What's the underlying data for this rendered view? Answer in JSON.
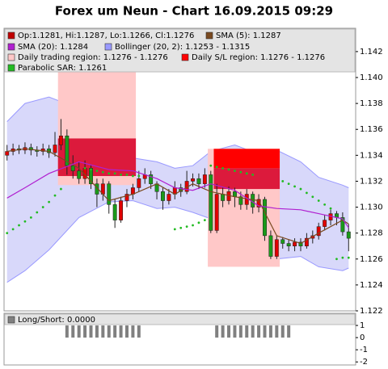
{
  "chart_data": [
    {
      "type": "candlestick",
      "title": "Forex um Neun - Chart 16.09.2015 09:29",
      "candle_label": "Op:1.1281, Hi:1.1287, Lo:1.1266, Cl:1.1276",
      "candle_color": "#c00000",
      "up_color": "#e00000",
      "down_color": "#1a9a1a",
      "open": [
        1.134,
        1.1343,
        1.1345,
        1.1344,
        1.1346,
        1.1344,
        1.1343,
        1.1345,
        1.1342,
        1.1348,
        1.1355,
        1.1332,
        1.1328,
        1.1322,
        1.133,
        1.1318,
        1.131,
        1.1318,
        1.1302,
        1.129,
        1.1305,
        1.131,
        1.1315,
        1.1322,
        1.1325,
        1.1318,
        1.1312,
        1.1305,
        1.131,
        1.1315,
        1.1312,
        1.132,
        1.1322,
        1.1318,
        1.1325,
        1.1282,
        1.131,
        1.1305,
        1.1312,
        1.1308,
        1.1302,
        1.131,
        1.13,
        1.1306,
        1.1278,
        1.1262,
        1.1275,
        1.1272,
        1.127,
        1.1273,
        1.127,
        1.1276,
        1.1278,
        1.1285,
        1.129,
        1.1295,
        1.1292,
        1.1281
      ],
      "high": [
        1.1348,
        1.1349,
        1.1348,
        1.135,
        1.1349,
        1.1347,
        1.1349,
        1.1348,
        1.1358,
        1.1368,
        1.136,
        1.134,
        1.1335,
        1.1336,
        1.1333,
        1.1322,
        1.1322,
        1.132,
        1.1306,
        1.1308,
        1.1314,
        1.1318,
        1.1328,
        1.133,
        1.1328,
        1.132,
        1.1315,
        1.1314,
        1.132,
        1.1318,
        1.1328,
        1.1326,
        1.1326,
        1.133,
        1.1328,
        1.1318,
        1.1315,
        1.1316,
        1.1315,
        1.1312,
        1.1314,
        1.1312,
        1.131,
        1.1308,
        1.1282,
        1.1278,
        1.1277,
        1.1275,
        1.1276,
        1.1276,
        1.128,
        1.1282,
        1.1288,
        1.1294,
        1.1298,
        1.1297,
        1.1296,
        1.1287
      ],
      "low": [
        1.1336,
        1.134,
        1.1341,
        1.1341,
        1.134,
        1.1339,
        1.134,
        1.1338,
        1.1339,
        1.1344,
        1.1325,
        1.1322,
        1.1318,
        1.1318,
        1.1314,
        1.13,
        1.1305,
        1.1295,
        1.1284,
        1.1288,
        1.13,
        1.1306,
        1.1312,
        1.1318,
        1.1314,
        1.1306,
        1.1298,
        1.1302,
        1.1306,
        1.1308,
        1.131,
        1.1316,
        1.1314,
        1.1315,
        1.128,
        1.128,
        1.13,
        1.1302,
        1.13,
        1.1298,
        1.1298,
        1.1295,
        1.1296,
        1.1274,
        1.126,
        1.126,
        1.1268,
        1.1266,
        1.1266,
        1.1266,
        1.1268,
        1.1272,
        1.1275,
        1.1282,
        1.1286,
        1.1286,
        1.1278,
        1.1266
      ],
      "close": [
        1.1343,
        1.1345,
        1.1344,
        1.1346,
        1.1344,
        1.1343,
        1.1345,
        1.1342,
        1.1348,
        1.1355,
        1.1332,
        1.1328,
        1.1322,
        1.133,
        1.1318,
        1.131,
        1.1318,
        1.1302,
        1.129,
        1.1305,
        1.131,
        1.1315,
        1.1322,
        1.1325,
        1.1318,
        1.1312,
        1.1305,
        1.131,
        1.1315,
        1.1312,
        1.132,
        1.1322,
        1.1318,
        1.1325,
        1.1282,
        1.131,
        1.1305,
        1.1312,
        1.1308,
        1.1302,
        1.131,
        1.13,
        1.1306,
        1.1278,
        1.1262,
        1.1275,
        1.1272,
        1.127,
        1.1273,
        1.127,
        1.1276,
        1.1278,
        1.1285,
        1.129,
        1.1295,
        1.1292,
        1.1281,
        1.1276
      ],
      "bollinger": {
        "label": "Bollinger (20, 2): 1.1253 - 1.1315",
        "color": "#9999ff",
        "fill": "#d8d8fa",
        "x": [
          0,
          3,
          7,
          12,
          17,
          21,
          25,
          28,
          31,
          34,
          38,
          42,
          45,
          49,
          52,
          56,
          57
        ],
        "upper": [
          1.1366,
          1.138,
          1.1385,
          1.1376,
          1.1348,
          1.1338,
          1.1335,
          1.133,
          1.1332,
          1.1343,
          1.1348,
          1.1341,
          1.1344,
          1.1335,
          1.1323,
          1.1317,
          1.1315
        ],
        "lower": [
          1.1242,
          1.1251,
          1.1267,
          1.1292,
          1.1304,
          1.1305,
          1.1299,
          1.13,
          1.1296,
          1.1291,
          1.1279,
          1.1259,
          1.126,
          1.1262,
          1.1254,
          1.1251,
          1.1253
        ]
      },
      "lines": [
        {
          "label": "SMA (5): 1.1287",
          "color": "#7a4a20",
          "x": [
            0,
            3,
            7,
            12,
            17,
            21,
            25,
            28,
            31,
            34,
            38,
            42,
            45,
            49,
            52,
            56,
            57
          ],
          "values": [
            1.1343,
            1.1345,
            1.1343,
            1.133,
            1.1305,
            1.131,
            1.1318,
            1.131,
            1.1318,
            1.1312,
            1.1308,
            1.1305,
            1.1278,
            1.1272,
            1.128,
            1.129,
            1.1287
          ]
        },
        {
          "label": "SMA (20): 1.1284",
          "color": "#b020d0",
          "x": [
            0,
            3,
            7,
            12,
            17,
            21,
            25,
            28,
            31,
            34,
            38,
            42,
            45,
            49,
            52,
            56,
            57
          ],
          "values": [
            1.1307,
            1.1315,
            1.1326,
            1.1335,
            1.1329,
            1.1328,
            1.1322,
            1.1315,
            1.1313,
            1.1318,
            1.1313,
            1.1301,
            1.1299,
            1.1298,
            1.1295,
            1.1291,
            1.1284
          ]
        }
      ],
      "trading_region": {
        "label": "Daily trading region: 1.1276 - 1.1276",
        "color": "#ffc8c8",
        "regions": [
          {
            "start": 9,
            "end": 21,
            "low": 1.1317,
            "high": 1.1425,
            "color": "#ffc8c8"
          },
          {
            "start": 34,
            "end": 45,
            "low": 1.1254,
            "high": 1.1345,
            "color": "#ffc8c8"
          }
        ]
      },
      "sl_region": {
        "label": "Daily S/L region: 1.1276 - 1.1276",
        "color": "#ff0000",
        "regions": [
          {
            "start": 9,
            "end": 21,
            "low": 1.1324,
            "high": 1.1353,
            "color": "#dc1a3c"
          },
          {
            "start": 35,
            "end": 45,
            "low": 1.133,
            "high": 1.1345,
            "color": "#ff0000"
          },
          {
            "start": 35,
            "end": 45,
            "low": 1.1314,
            "high": 1.133,
            "color": "#dc1a3c"
          }
        ]
      },
      "sar": {
        "label": "Parabolic SAR: 1.1261",
        "color": "#22bb22",
        "values": [
          1.128,
          1.1283,
          1.1286,
          1.1289,
          1.1292,
          1.1296,
          1.13,
          1.1304,
          1.1309,
          1.1314,
          null,
          null,
          null,
          1.133,
          1.1329,
          1.1328,
          1.1327,
          1.1326,
          1.1326,
          1.1325,
          1.1325,
          1.1324,
          1.1324,
          null,
          null,
          null,
          null,
          null,
          1.1283,
          1.1284,
          1.1285,
          1.1286,
          1.1288,
          1.129,
          1.1332,
          1.1331,
          1.133,
          1.1329,
          1.1328,
          1.1327,
          1.1326,
          1.1325,
          null,
          null,
          null,
          null,
          1.132,
          1.1318,
          1.1316,
          1.1314,
          1.1311,
          1.1308,
          1.1305,
          1.1302,
          1.1299,
          1.126,
          1.1261,
          1.1261
        ]
      },
      "ylim": [
        1.122,
        1.1438
      ],
      "yticks": [
        1.122,
        1.124,
        1.126,
        1.128,
        {
          "value": 1.13,
          "label": "1.130"
        },
        1.132,
        1.134,
        1.136,
        1.138,
        {
          "value": 1.14,
          "label": "1.140"
        },
        1.142
      ]
    },
    {
      "type": "bar",
      "label": "Long/Short: 0.0000",
      "color": "#808080",
      "values": [
        0,
        0,
        0,
        0,
        0,
        0,
        0,
        0,
        0,
        0,
        1,
        1,
        1,
        1,
        1,
        1,
        1,
        1,
        1,
        1,
        1,
        1,
        1,
        0,
        0,
        0,
        0,
        0,
        0,
        0,
        0,
        0,
        0,
        0,
        0,
        1,
        1,
        1,
        1,
        1,
        1,
        1,
        1,
        1,
        1,
        1,
        1,
        1,
        0,
        0,
        0,
        0,
        0,
        0,
        0,
        0,
        0,
        0
      ],
      "ylim": [
        -2.25,
        2
      ],
      "yticks": [
        1,
        0,
        -1,
        -2
      ]
    }
  ]
}
